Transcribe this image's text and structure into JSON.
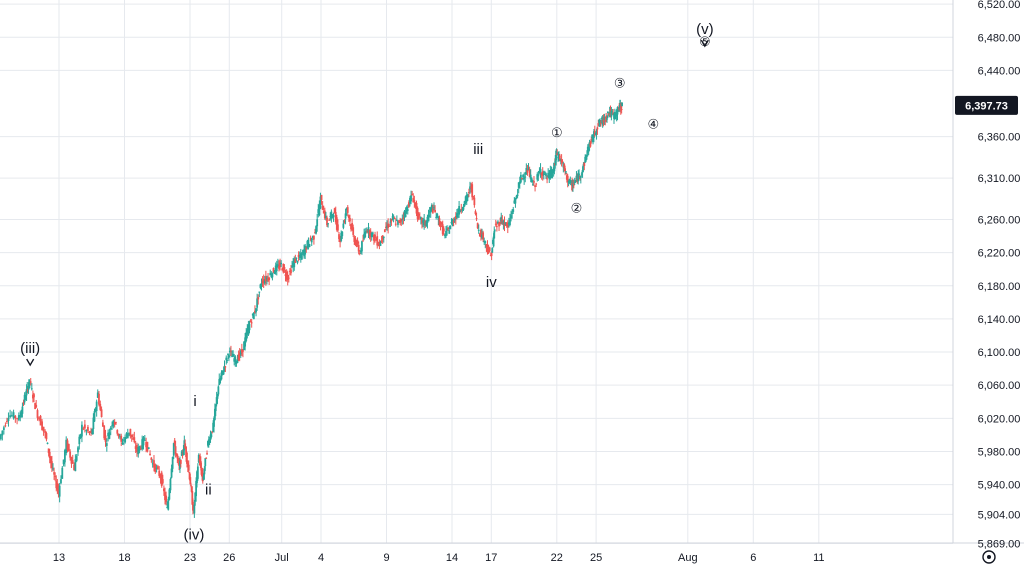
{
  "chart_data": {
    "type": "candlestick",
    "instrument_last_price": "6,397.73",
    "y_axis": {
      "range": [
        5855,
        6525
      ],
      "ticks": [
        {
          "value": 6520,
          "label": "6,520.00"
        },
        {
          "value": 6480,
          "label": "6,480.00"
        },
        {
          "value": 6440,
          "label": "6,440.00"
        },
        {
          "value": 6360,
          "label": "6,360.00"
        },
        {
          "value": 6310,
          "label": "6,310.00"
        },
        {
          "value": 6260,
          "label": "6,260.00"
        },
        {
          "value": 6220,
          "label": "6,220.00"
        },
        {
          "value": 6180,
          "label": "6,180.00"
        },
        {
          "value": 6140,
          "label": "6,140.00"
        },
        {
          "value": 6100,
          "label": "6,100.00"
        },
        {
          "value": 6060,
          "label": "6,060.00"
        },
        {
          "value": 6020,
          "label": "6,020.00"
        },
        {
          "value": 5980,
          "label": "5,980.00"
        },
        {
          "value": 5940,
          "label": "5,940.00"
        },
        {
          "value": 5904,
          "label": "5,904.00"
        },
        {
          "value": 5869,
          "label": "5,869.00"
        }
      ]
    },
    "x_axis": {
      "ticks": [
        {
          "day": 13,
          "label": "13"
        },
        {
          "day": 18,
          "label": "18"
        },
        {
          "day": 23,
          "label": "23"
        },
        {
          "day": 26,
          "label": "26"
        },
        {
          "day": 30,
          "label": "Jul"
        },
        {
          "day": 33,
          "label": "4"
        },
        {
          "day": 38,
          "label": "9"
        },
        {
          "day": 43,
          "label": "14"
        },
        {
          "day": 46,
          "label": "17"
        },
        {
          "day": 51,
          "label": "22"
        },
        {
          "day": 54,
          "label": "25"
        },
        {
          "day": 61,
          "label": "Aug"
        },
        {
          "day": 66,
          "label": "6"
        },
        {
          "day": 71,
          "label": "11"
        }
      ]
    },
    "price_path": [
      [
        8.5,
        5995
      ],
      [
        9.2,
        6025
      ],
      [
        10.0,
        6020
      ],
      [
        10.5,
        6050
      ],
      [
        10.8,
        6065
      ],
      [
        11.3,
        6030
      ],
      [
        12.0,
        6000
      ],
      [
        12.5,
        5960
      ],
      [
        13.0,
        5930
      ],
      [
        13.6,
        5990
      ],
      [
        14.2,
        5960
      ],
      [
        14.8,
        6010
      ],
      [
        15.5,
        6000
      ],
      [
        16.0,
        6050
      ],
      [
        16.6,
        5990
      ],
      [
        17.2,
        6020
      ],
      [
        17.8,
        5990
      ],
      [
        18.4,
        6005
      ],
      [
        19.0,
        5980
      ],
      [
        19.6,
        5995
      ],
      [
        20.2,
        5965
      ],
      [
        20.8,
        5950
      ],
      [
        21.3,
        5910
      ],
      [
        21.8,
        5990
      ],
      [
        22.2,
        5960
      ],
      [
        22.6,
        5990
      ],
      [
        23.0,
        5950
      ],
      [
        23.3,
        5905
      ],
      [
        23.7,
        5975
      ],
      [
        24.0,
        5945
      ],
      [
        24.4,
        5990
      ],
      [
        24.8,
        6010
      ],
      [
        25.2,
        6060
      ],
      [
        25.6,
        6080
      ],
      [
        26.0,
        6100
      ],
      [
        26.5,
        6090
      ],
      [
        27.0,
        6100
      ],
      [
        27.5,
        6130
      ],
      [
        28.0,
        6150
      ],
      [
        28.5,
        6185
      ],
      [
        29.0,
        6190
      ],
      [
        29.5,
        6200
      ],
      [
        30.0,
        6205
      ],
      [
        30.5,
        6190
      ],
      [
        31.0,
        6210
      ],
      [
        31.5,
        6215
      ],
      [
        32.0,
        6230
      ],
      [
        32.5,
        6240
      ],
      [
        33.0,
        6285
      ],
      [
        33.5,
        6255
      ],
      [
        34.0,
        6270
      ],
      [
        34.5,
        6235
      ],
      [
        35.0,
        6275
      ],
      [
        35.5,
        6240
      ],
      [
        36.0,
        6220
      ],
      [
        36.5,
        6250
      ],
      [
        37.0,
        6240
      ],
      [
        37.5,
        6230
      ],
      [
        38.0,
        6250
      ],
      [
        38.5,
        6260
      ],
      [
        39.0,
        6255
      ],
      [
        39.5,
        6270
      ],
      [
        40.0,
        6290
      ],
      [
        40.5,
        6260
      ],
      [
        41.0,
        6255
      ],
      [
        41.5,
        6275
      ],
      [
        42.0,
        6260
      ],
      [
        42.5,
        6240
      ],
      [
        43.0,
        6255
      ],
      [
        43.5,
        6270
      ],
      [
        44.0,
        6280
      ],
      [
        44.5,
        6300
      ],
      [
        45.0,
        6250
      ],
      [
        45.5,
        6235
      ],
      [
        46.0,
        6215
      ],
      [
        46.3,
        6250
      ],
      [
        46.8,
        6260
      ],
      [
        47.3,
        6250
      ],
      [
        47.8,
        6280
      ],
      [
        48.3,
        6310
      ],
      [
        48.8,
        6320
      ],
      [
        49.3,
        6300
      ],
      [
        49.8,
        6320
      ],
      [
        50.3,
        6310
      ],
      [
        50.8,
        6320
      ],
      [
        51.0,
        6340
      ],
      [
        51.4,
        6330
      ],
      [
        51.8,
        6310
      ],
      [
        52.2,
        6300
      ],
      [
        52.6,
        6310
      ],
      [
        53.0,
        6320
      ],
      [
        53.4,
        6345
      ],
      [
        53.8,
        6360
      ],
      [
        54.2,
        6375
      ],
      [
        54.6,
        6380
      ],
      [
        55.0,
        6390
      ],
      [
        55.4,
        6385
      ],
      [
        55.8,
        6395
      ],
      [
        56.0,
        6397.73
      ]
    ],
    "wave_annotations": [
      {
        "label": "(iii)",
        "day": 10.8,
        "price": 6065,
        "position": "above",
        "arrow": true
      },
      {
        "label": "(iv)",
        "day": 23.3,
        "price": 5905,
        "position": "below",
        "arrow": false
      },
      {
        "label": "(v)",
        "day": 62.3,
        "price": 6450,
        "position": "above",
        "arrow": true
      },
      {
        "label": "i",
        "day": 24.0,
        "price": 6035,
        "position": "left",
        "arrow": false
      },
      {
        "label": "ii",
        "day": 24.4,
        "price": 5950,
        "position": "below",
        "arrow": false
      },
      {
        "label": "iii",
        "day": 45.0,
        "price": 6320,
        "position": "above",
        "arrow": false
      },
      {
        "label": "iv",
        "day": 46.0,
        "price": 6200,
        "position": "below",
        "arrow": false
      },
      {
        "label": "①",
        "day": 51.0,
        "price": 6340,
        "position": "above",
        "arrow": false
      },
      {
        "label": "②",
        "day": 52.5,
        "price": 6290,
        "position": "below",
        "arrow": false
      },
      {
        "label": "③",
        "day": 55.8,
        "price": 6400,
        "position": "above",
        "arrow": false
      },
      {
        "label": "④",
        "day": 57.3,
        "price": 6370,
        "position": "right",
        "arrow": false
      },
      {
        "label": "⑤",
        "day": 62.3,
        "price": 6450,
        "position": "above",
        "arrow": false
      }
    ],
    "colors": {
      "up": "#26a69a",
      "down": "#ef5350",
      "badge": "#131722",
      "grid": "#e6e9ee",
      "text": "#131722"
    },
    "grid": true
  },
  "ui": {
    "settings_icon": "gear-icon"
  }
}
